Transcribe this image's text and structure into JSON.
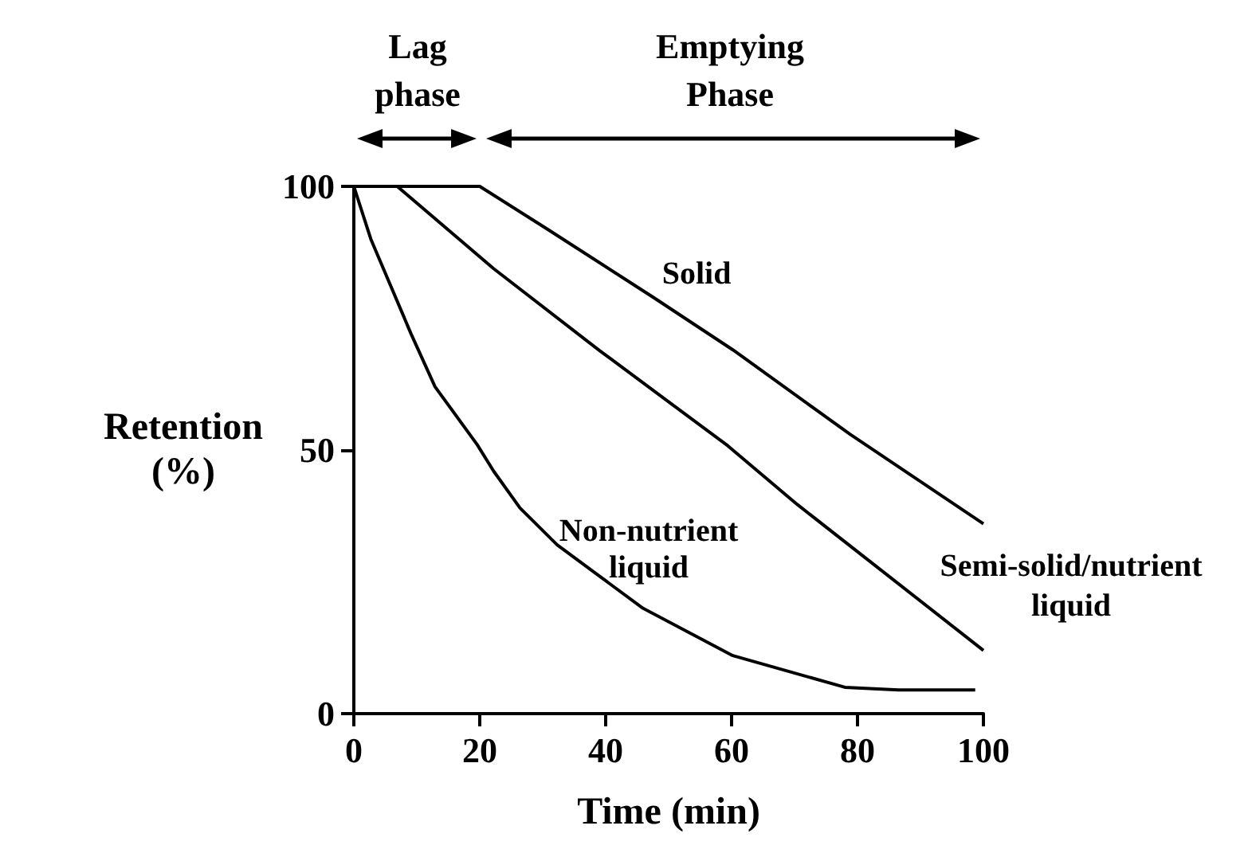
{
  "chart_data": {
    "type": "line",
    "xlabel": "Time (min)",
    "ylabel": "Retention\n(%)",
    "xlim": [
      0,
      100
    ],
    "xticks": [
      0,
      20,
      40,
      60,
      80,
      100
    ],
    "ylim": [
      0,
      100
    ],
    "yticks": [
      0,
      50,
      100
    ],
    "series": [
      {
        "color": "#000000",
        "x": [
          0,
          20,
          30.6,
          47.5,
          60.2,
          78.8,
          100
        ],
        "values": [
          100,
          100,
          92,
          79,
          69,
          53,
          36
        ]
      },
      {
        "color": "#000000",
        "x": [
          0,
          6.9,
          22.2,
          39.1,
          59.4,
          70.4,
          100
        ],
        "values": [
          100,
          100,
          84.4,
          68.8,
          50.8,
          39.7,
          12
        ]
      },
      {
        "color": "#000000",
        "x": [
          0,
          2.7,
          9.1,
          12.9,
          19.6,
          22.2,
          26.4,
          32.3,
          39.1,
          45.9,
          60.2,
          78,
          86.5,
          98.7
        ],
        "values": [
          100,
          90,
          72,
          62,
          51,
          46,
          39,
          32,
          26,
          20,
          11,
          5,
          4.5,
          4.5
        ]
      }
    ],
    "annotations": [
      "Lag\nphase",
      "Emptying\nPhase",
      "Solid",
      "Non-nutrient\nliquid",
      "Semi-solid/nutrient\nliquid"
    ]
  }
}
